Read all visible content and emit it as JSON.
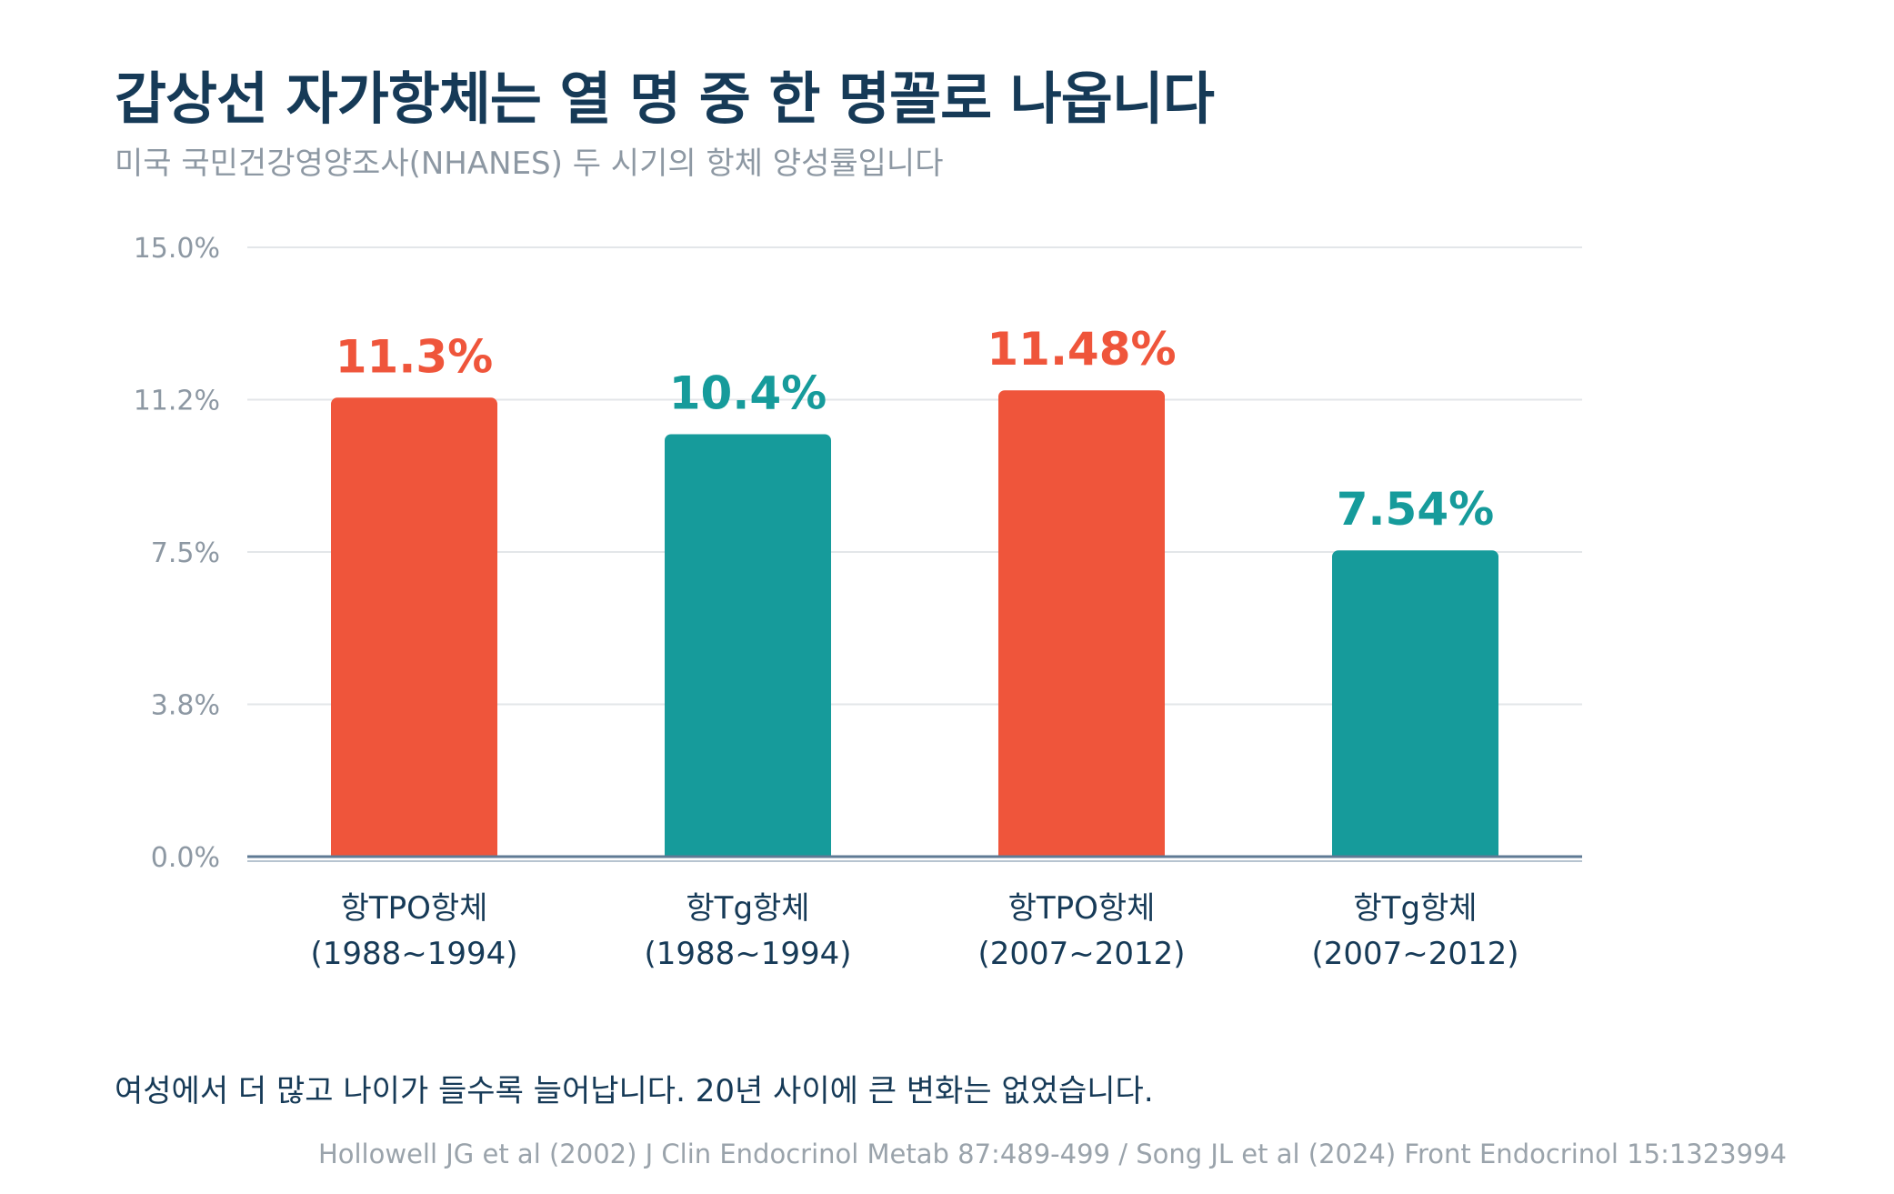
{
  "header": {
    "title": "갑상선 자가항체는 열 명 중 한 명꼴로 나옵니다",
    "subtitle": "미국 국민건강영양조사(NHANES) 두 시기의 항체 양성률입니다"
  },
  "chart_data": {
    "type": "bar",
    "categories": [
      [
        "항TPO항체",
        "(1988~1994)"
      ],
      [
        "항Tg항체",
        "(1988~1994)"
      ],
      [
        "항TPO항체",
        "(2007~2012)"
      ],
      [
        "항Tg항체",
        "(2007~2012)"
      ]
    ],
    "values": [
      11.3,
      10.4,
      11.48,
      7.54
    ],
    "value_labels": [
      "11.3%",
      "10.4%",
      "11.48%",
      "7.54%"
    ],
    "bar_colors": [
      "#ef553b",
      "#169b9b",
      "#ef553b",
      "#169b9b"
    ],
    "ylim": [
      0,
      15
    ],
    "yticks": [
      0,
      3.75,
      7.5,
      11.25,
      15
    ],
    "ytick_labels": [
      "0.0%",
      "3.8%",
      "7.5%",
      "11.2%",
      "15.0%"
    ],
    "grid": true,
    "xlabel": "",
    "ylabel": ""
  },
  "footer": {
    "note": "여성에서 더 많고 나이가 들수록 늘어납니다. 20년 사이에 큰 변화는 없었습니다.",
    "source": "Hollowell JG et al (2002) J Clin Endocrinol Metab 87:489-499 / Song JL et al (2024) Front Endocrinol 15:1323994"
  },
  "colors": {
    "title": "#163a57",
    "muted": "#8d98a3",
    "grid": "#e3e6e9",
    "axis": "#5f7a94",
    "orange": "#ef553b",
    "teal": "#169b9b"
  }
}
